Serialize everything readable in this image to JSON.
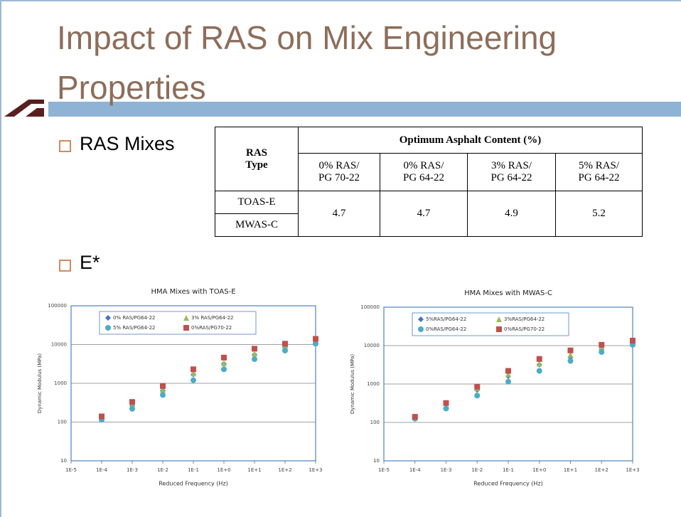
{
  "slide": {
    "title": "Impact of RAS on Mix Engineering Properties",
    "bullets": [
      "RAS Mixes",
      "E*"
    ],
    "table": {
      "corner": "RAS\nType",
      "group_header": "Optimum Asphalt Content (%)",
      "columns": [
        "0% RAS/\nPG 70-22",
        "0% RAS/\nPG 64-22",
        "3% RAS/\nPG 64-22",
        "5% RAS/\nPG 64-22"
      ],
      "row_labels": [
        "TOAS-E",
        "MWAS-C"
      ],
      "values": [
        "4.7",
        "4.7",
        "4.9",
        "5.2"
      ]
    }
  },
  "chart_data": [
    {
      "type": "scatter",
      "title": "HMA Mixes with TOAS-E",
      "xlabel": "Reduced Frequency (Hz)",
      "ylabel": "Dynamic Modulus (MPa)",
      "xscale": "log",
      "yscale": "log",
      "grid": true,
      "xlim": [
        1e-05,
        1000
      ],
      "ylim": [
        10,
        100000
      ],
      "xticks": [
        {
          "value": 1e-05,
          "label": "1E-5"
        },
        {
          "value": 0.0001,
          "label": "1E-4"
        },
        {
          "value": 0.001,
          "label": "1E-3"
        },
        {
          "value": 0.01,
          "label": "1E-2"
        },
        {
          "value": 0.1,
          "label": "1E-1"
        },
        {
          "value": 1,
          "label": "1E+0"
        },
        {
          "value": 10,
          "label": "1E+1"
        },
        {
          "value": 100,
          "label": "1E+2"
        },
        {
          "value": 1000,
          "label": "1E+3"
        }
      ],
      "yticks": [
        10,
        100,
        1000,
        10000,
        100000
      ],
      "x": [
        0.0001,
        0.001,
        0.01,
        0.1,
        1,
        10,
        100,
        1000
      ],
      "series": [
        {
          "name": "0% RAS/PG64-22",
          "color": "#4472c4",
          "marker": "diamond",
          "values": [
            120,
            260,
            650,
            1700,
            3200,
            5500,
            8500,
            11000
          ]
        },
        {
          "name": "3% RAS/PG64-22",
          "color": "#9bbb59",
          "marker": "triangle",
          "values": [
            125,
            270,
            680,
            1800,
            3300,
            5800,
            9000,
            11500
          ]
        },
        {
          "name": "5% RAS/PG64-22",
          "color": "#4bacc6",
          "marker": "circle",
          "values": [
            115,
            220,
            500,
            1200,
            2300,
            4200,
            7000,
            10500
          ]
        },
        {
          "name": "0%RAS/PG70-22",
          "color": "#c0504d",
          "marker": "square",
          "values": [
            140,
            330,
            850,
            2300,
            4600,
            7800,
            10500,
            14000
          ]
        }
      ]
    },
    {
      "type": "scatter",
      "title": "HMA Mixes with MWAS-C",
      "xlabel": "Reduced Frequency (Hz)",
      "ylabel": "Dynamic Modulus (MPa)",
      "xscale": "log",
      "yscale": "log",
      "grid": true,
      "xlim": [
        1e-05,
        1000
      ],
      "ylim": [
        10,
        100000
      ],
      "xticks": [
        {
          "value": 1e-05,
          "label": "1E-5"
        },
        {
          "value": 0.0001,
          "label": "1E-4"
        },
        {
          "value": 0.001,
          "label": "1E-3"
        },
        {
          "value": 0.01,
          "label": "1E-2"
        },
        {
          "value": 0.1,
          "label": "1E-1"
        },
        {
          "value": 1,
          "label": "1E+0"
        },
        {
          "value": 10,
          "label": "1E+1"
        },
        {
          "value": 100,
          "label": "1E+2"
        },
        {
          "value": 1000,
          "label": "1E+3"
        }
      ],
      "yticks": [
        10,
        100,
        1000,
        10000,
        100000
      ],
      "x": [
        0.0001,
        0.001,
        0.01,
        0.1,
        1,
        10,
        100,
        1000
      ],
      "series": [
        {
          "name": "5%RAS/PG64-22",
          "color": "#4472c4",
          "marker": "diamond",
          "values": [
            130,
            240,
            700,
            1600,
            3200,
            5000,
            8200,
            10800
          ]
        },
        {
          "name": "3%RAS/PG64-22",
          "color": "#9bbb59",
          "marker": "triangle",
          "values": [
            135,
            260,
            780,
            1800,
            3400,
            5800,
            9000,
            11500
          ]
        },
        {
          "name": "0%RAS/PG64-22",
          "color": "#4bacc6",
          "marker": "circle",
          "values": [
            125,
            230,
            500,
            1150,
            2200,
            4000,
            6800,
            10500
          ]
        },
        {
          "name": "0%RAS/PG70-22",
          "color": "#c0504d",
          "marker": "square",
          "values": [
            140,
            320,
            850,
            2200,
            4500,
            7500,
            10500,
            13500
          ]
        }
      ]
    }
  ]
}
